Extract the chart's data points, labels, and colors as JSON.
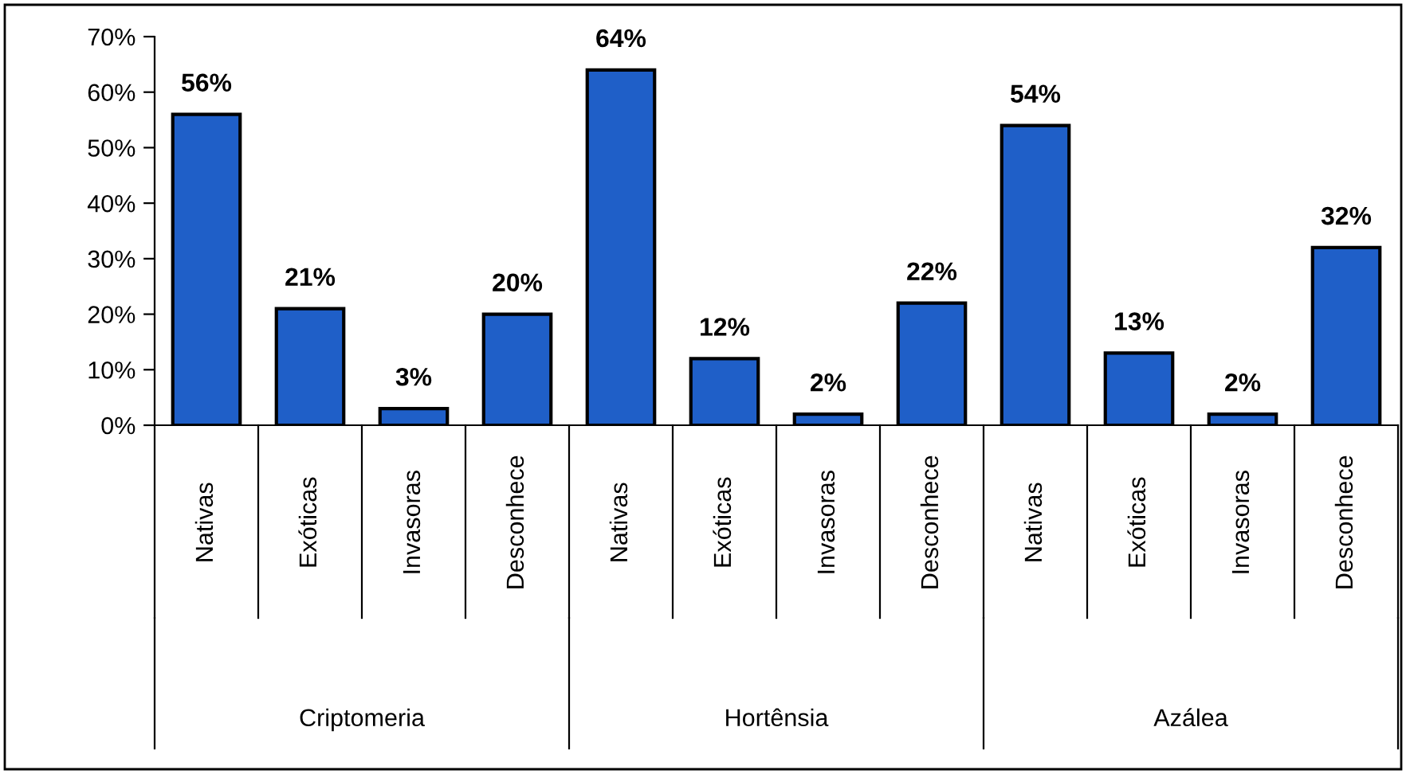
{
  "chart_data": {
    "type": "bar",
    "categories": [
      "Nativas",
      "Exóticas",
      "Invasoras",
      "Desconhece",
      "Nativas",
      "Exóticas",
      "Invasoras",
      "Desconhece",
      "Nativas",
      "Exóticas",
      "Invasoras",
      "Desconhece"
    ],
    "values": [
      56,
      21,
      3,
      20,
      64,
      12,
      2,
      22,
      54,
      13,
      2,
      32
    ],
    "value_labels": [
      "56%",
      "21%",
      "3%",
      "20%",
      "64%",
      "12%",
      "2%",
      "22%",
      "54%",
      "13%",
      "2%",
      "32%"
    ],
    "color": "#1f5fc8",
    "ylim": [
      0,
      70
    ],
    "yticks": [
      {
        "value": 0,
        "label": "0%"
      },
      {
        "value": 10,
        "label": "10%"
      },
      {
        "value": 20,
        "label": "20%"
      },
      {
        "value": 30,
        "label": "30%"
      },
      {
        "value": 40,
        "label": "40%"
      },
      {
        "value": 50,
        "label": "50%"
      },
      {
        "value": 60,
        "label": "60%"
      },
      {
        "value": 70,
        "label": "70%"
      }
    ],
    "annotations": [
      "Criptomeria",
      "Hortênsia",
      "Azálea"
    ],
    "grid": false,
    "legend": false
  }
}
